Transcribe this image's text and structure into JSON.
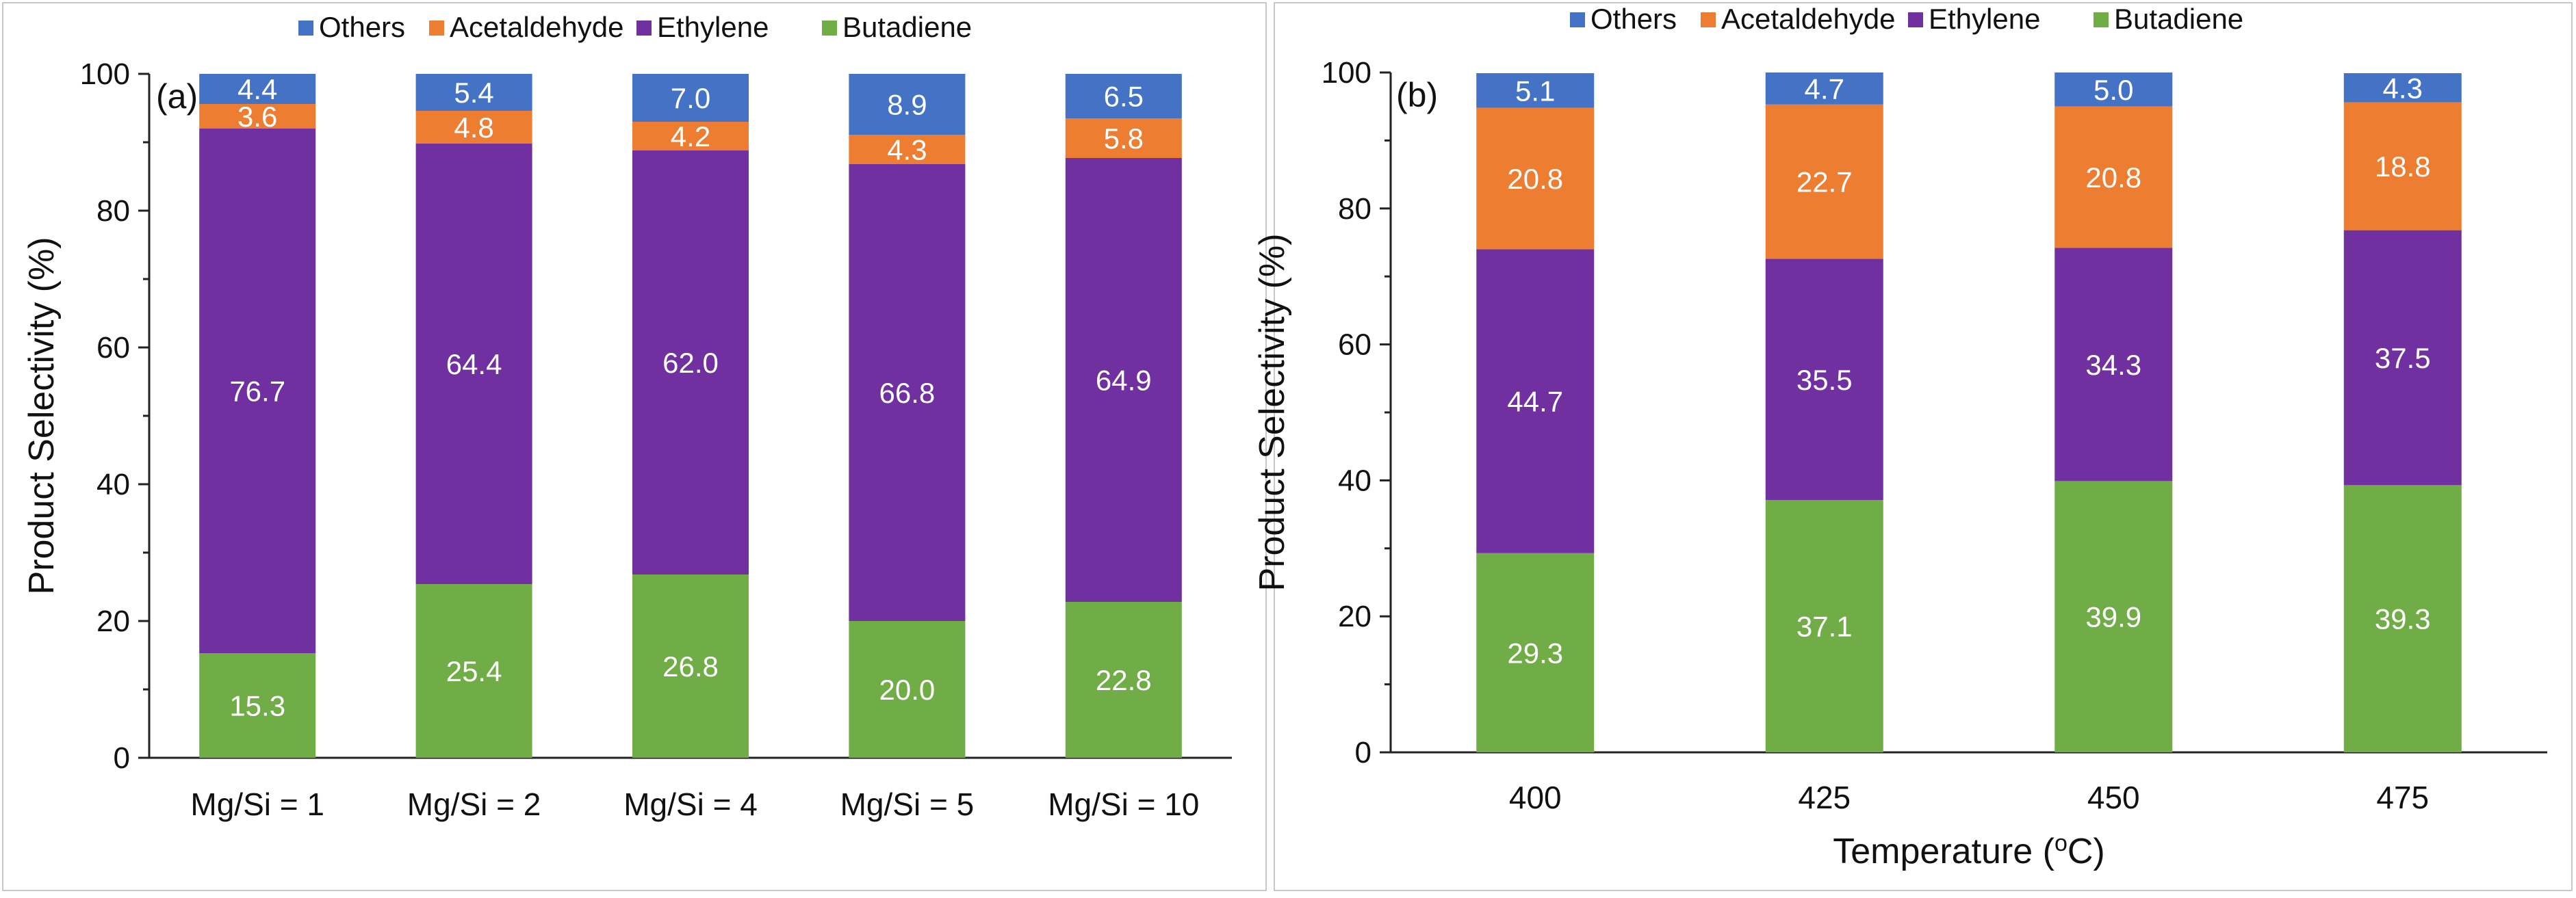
{
  "chart_data": [
    {
      "type": "bar",
      "stacked": true,
      "panel_label": "(a)",
      "categories": [
        "Mg/Si = 1",
        "Mg/Si = 2",
        "Mg/Si = 4",
        "Mg/Si = 5",
        "Mg/Si = 10"
      ],
      "series": [
        {
          "name": "Butadiene",
          "color": "#70ad47",
          "values": [
            15.3,
            25.4,
            26.8,
            20.0,
            22.8
          ]
        },
        {
          "name": "Ethylene",
          "color": "#7030a0",
          "values": [
            76.7,
            64.4,
            62.0,
            66.8,
            64.9
          ]
        },
        {
          "name": "Acetaldehyde",
          "color": "#ed7d31",
          "values": [
            3.6,
            4.8,
            4.2,
            4.3,
            5.8
          ]
        },
        {
          "name": "Others",
          "color": "#4472c4",
          "values": [
            4.4,
            5.4,
            7.0,
            8.9,
            6.5
          ]
        }
      ],
      "legend": [
        "Others",
        "Acetaldehyde",
        "Ethylene",
        "Butadiene"
      ],
      "legend_position": "top",
      "xlabel": "",
      "ylabel": "Product Selectivity (%)",
      "ylim": [
        0,
        100
      ],
      "yticks": [
        "0",
        "20",
        "40",
        "60",
        "80",
        "100"
      ],
      "grid": false
    },
    {
      "type": "bar",
      "stacked": true,
      "panel_label": "(b)",
      "categories": [
        "400",
        "425",
        "450",
        "475"
      ],
      "series": [
        {
          "name": "Butadiene",
          "color": "#70ad47",
          "values": [
            29.3,
            37.1,
            39.9,
            39.3
          ]
        },
        {
          "name": "Ethylene",
          "color": "#7030a0",
          "values": [
            44.7,
            35.5,
            34.3,
            37.5
          ]
        },
        {
          "name": "Acetaldehyde",
          "color": "#ed7d31",
          "values": [
            20.8,
            22.7,
            20.8,
            18.8
          ]
        },
        {
          "name": "Others",
          "color": "#4472c4",
          "values": [
            5.1,
            4.7,
            5.0,
            4.3
          ]
        }
      ],
      "legend": [
        "Others",
        "Acetaldehyde",
        "Ethylene",
        "Butadiene"
      ],
      "legend_position": "top",
      "xlabel": "Temperature (",
      "xlabel_sup": "o",
      "xlabel_tail": "C)",
      "ylabel": "Product Selectivity (%)",
      "ylim": [
        0,
        100
      ],
      "yticks": [
        "0",
        "20",
        "40",
        "60",
        "80",
        "100"
      ],
      "grid": false
    }
  ]
}
